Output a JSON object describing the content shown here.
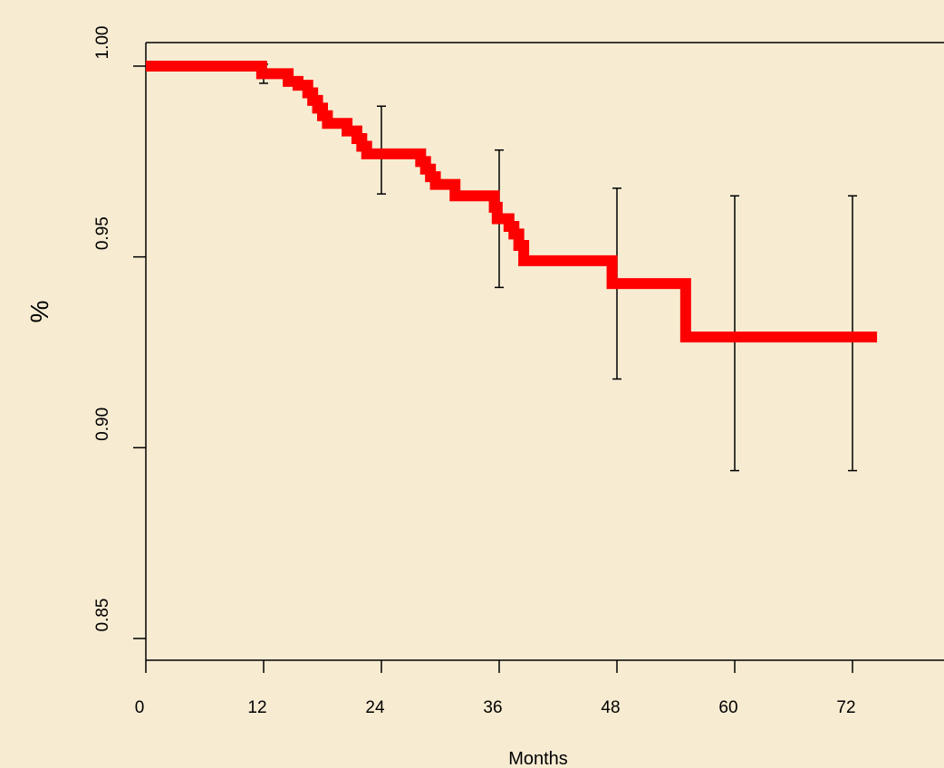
{
  "chart_data": {
    "type": "line",
    "title": "",
    "xlabel": "Months",
    "ylabel": "%",
    "xlim": [
      0,
      80
    ],
    "ylim": [
      0.844,
      1.006
    ],
    "x_ticks": [
      0,
      12,
      24,
      36,
      48,
      60,
      72
    ],
    "x_tick_labels": [
      "0",
      "12",
      "24",
      "36",
      "48",
      "60",
      "72"
    ],
    "y_ticks": [
      0.85,
      0.9,
      0.95,
      1.0
    ],
    "y_tick_labels": [
      "0.85",
      "0.90",
      "0.95",
      "1.00"
    ],
    "grid": false,
    "colors": {
      "curve": "#ff0000",
      "error_bars": "#000000",
      "background": "#f7ecd2"
    },
    "series": [
      {
        "style": "step",
        "points": [
          {
            "x": 0,
            "y": 1.0
          },
          {
            "x": 11.8,
            "y": 0.998
          },
          {
            "x": 14.5,
            "y": 0.996
          },
          {
            "x": 15.5,
            "y": 0.995
          },
          {
            "x": 16.5,
            "y": 0.993
          },
          {
            "x": 17.0,
            "y": 0.991
          },
          {
            "x": 17.5,
            "y": 0.989
          },
          {
            "x": 18.0,
            "y": 0.987
          },
          {
            "x": 18.5,
            "y": 0.985
          },
          {
            "x": 20.5,
            "y": 0.983
          },
          {
            "x": 21.5,
            "y": 0.981
          },
          {
            "x": 22.0,
            "y": 0.979
          },
          {
            "x": 22.5,
            "y": 0.977
          },
          {
            "x": 28.0,
            "y": 0.975
          },
          {
            "x": 28.5,
            "y": 0.973
          },
          {
            "x": 29.0,
            "y": 0.971
          },
          {
            "x": 29.5,
            "y": 0.969
          },
          {
            "x": 31.5,
            "y": 0.966
          },
          {
            "x": 35.5,
            "y": 0.963
          },
          {
            "x": 35.8,
            "y": 0.96
          },
          {
            "x": 37.0,
            "y": 0.958
          },
          {
            "x": 37.5,
            "y": 0.956
          },
          {
            "x": 38.0,
            "y": 0.953
          },
          {
            "x": 38.5,
            "y": 0.949
          },
          {
            "x": 47.5,
            "y": 0.943
          },
          {
            "x": 55.0,
            "y": 0.929
          },
          {
            "x": 74.5,
            "y": 0.929
          }
        ]
      }
    ],
    "error_bars": [
      {
        "x": 12,
        "y": 0.998,
        "low": 0.9955,
        "high": 1.0005
      },
      {
        "x": 24,
        "y": 0.977,
        "low": 0.9665,
        "high": 0.9895
      },
      {
        "x": 36,
        "y": 0.96,
        "low": 0.942,
        "high": 0.978
      },
      {
        "x": 48,
        "y": 0.943,
        "low": 0.918,
        "high": 0.968
      },
      {
        "x": 60,
        "y": 0.929,
        "low": 0.894,
        "high": 0.966
      },
      {
        "x": 72,
        "y": 0.929,
        "low": 0.894,
        "high": 0.966
      }
    ]
  }
}
